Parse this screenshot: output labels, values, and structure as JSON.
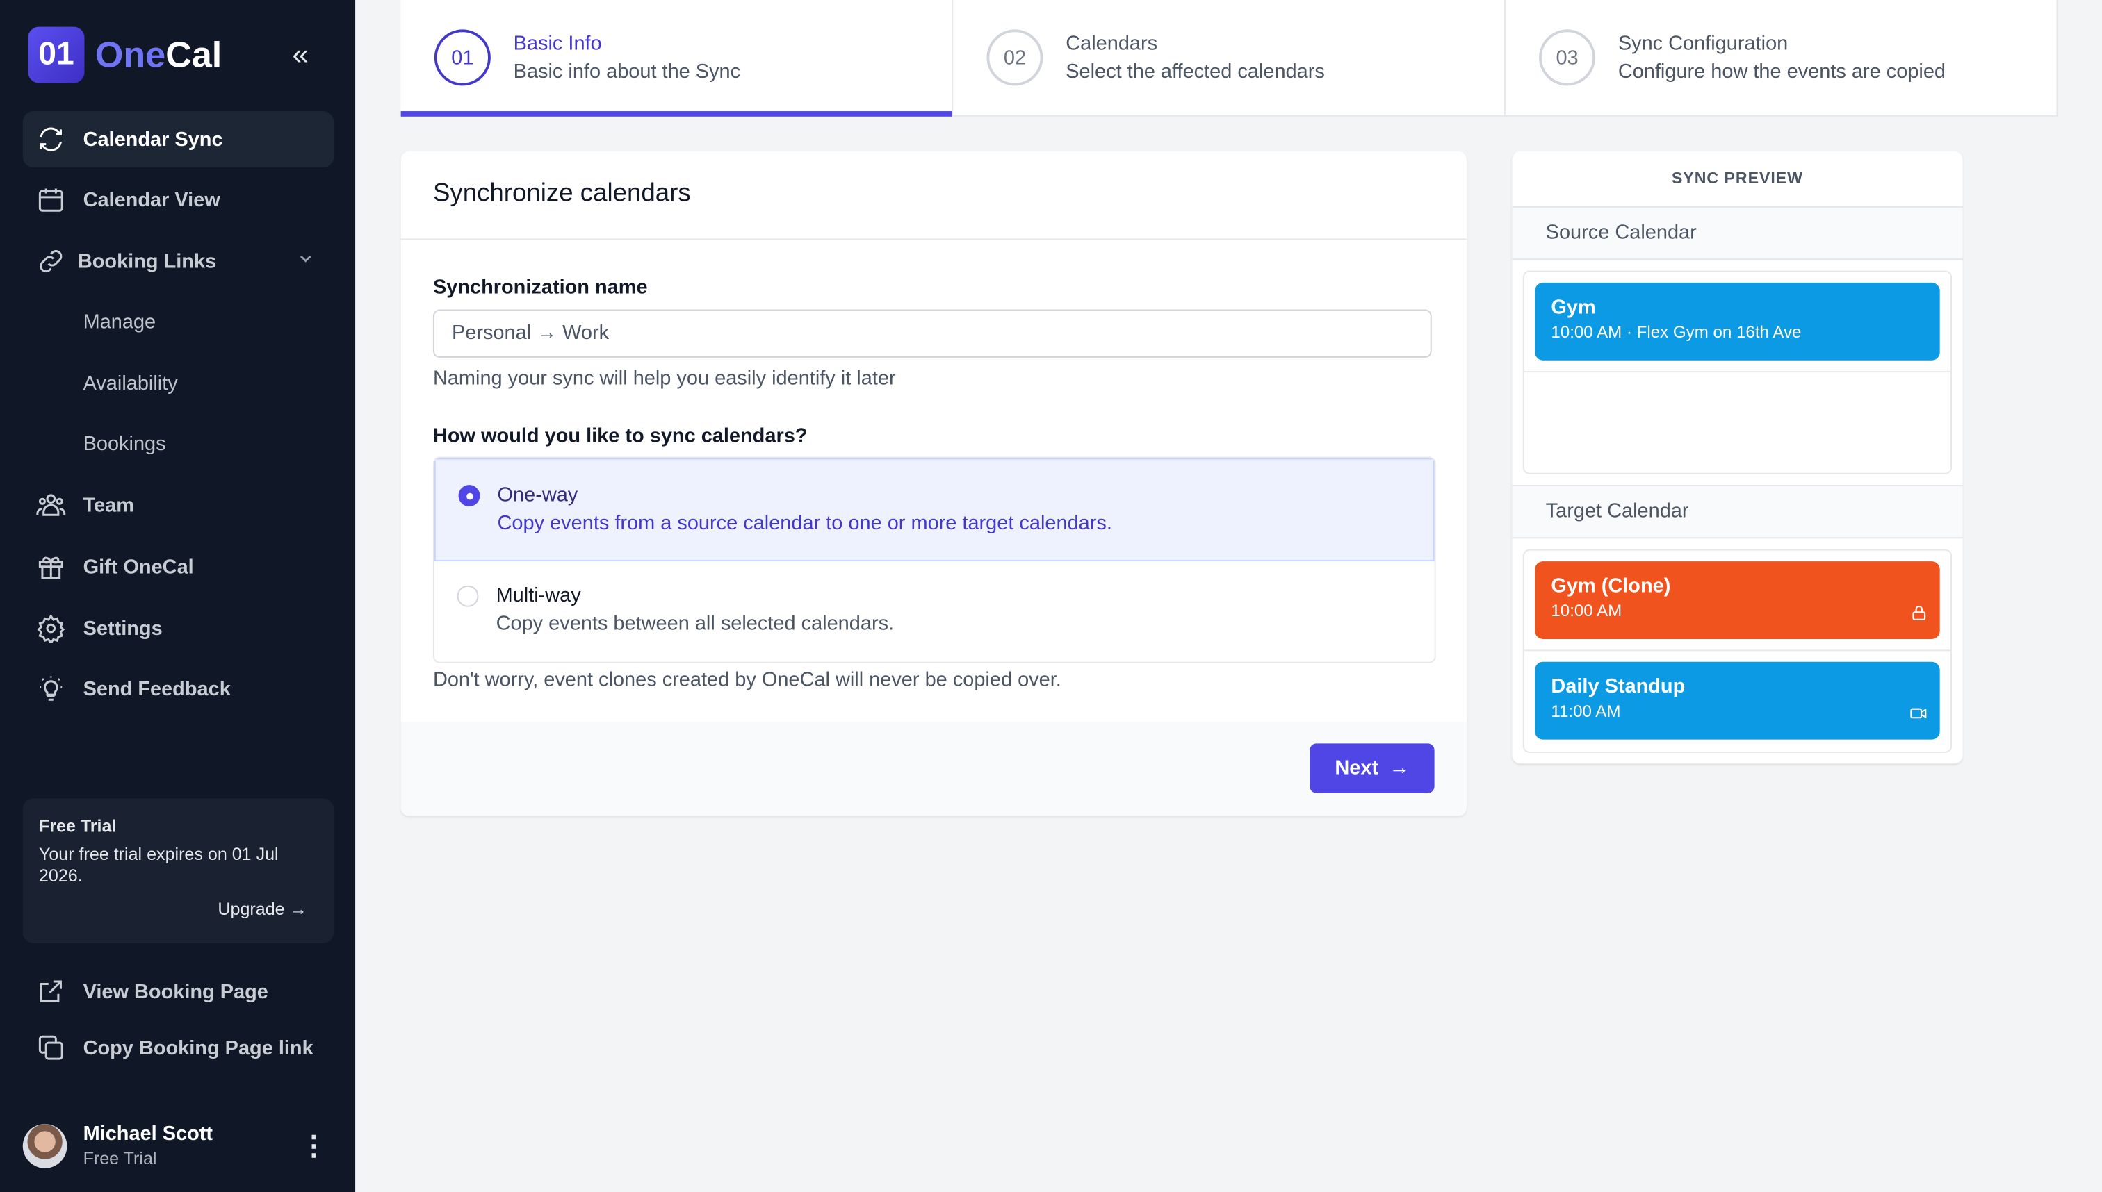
{
  "app": {
    "logo_mark": "01",
    "logo_part1": "One",
    "logo_part2": "Cal",
    "brand_color": "#4f46e5"
  },
  "sidebar": {
    "items": [
      {
        "label": "Calendar Sync",
        "icon": "sync-icon",
        "active": true
      },
      {
        "label": "Calendar View",
        "icon": "calendar-icon"
      },
      {
        "label": "Booking Links",
        "icon": "link-icon",
        "expanded": true
      },
      {
        "label": "Team",
        "icon": "users-icon"
      },
      {
        "label": "Gift OneCal",
        "icon": "gift-icon"
      },
      {
        "label": "Settings",
        "icon": "gear-icon"
      },
      {
        "label": "Send Feedback",
        "icon": "lightbulb-icon"
      }
    ],
    "sub_items": [
      "Manage",
      "Availability",
      "Bookings"
    ],
    "trial": {
      "title": "Free Trial",
      "text": "Your free trial expires on 01 Jul 2026.",
      "upgrade": "Upgrade →"
    },
    "bottom": [
      {
        "label": "View Booking Page",
        "icon": "external-link-icon"
      },
      {
        "label": "Copy Booking Page link",
        "icon": "copy-icon"
      }
    ],
    "user": {
      "name": "Michael Scott",
      "plan": "Free Trial"
    }
  },
  "steps": [
    {
      "num": "01",
      "title": "Basic Info",
      "desc": "Basic info about the Sync",
      "active": true
    },
    {
      "num": "02",
      "title": "Calendars",
      "desc": "Select the affected calendars"
    },
    {
      "num": "03",
      "title": "Sync Configuration",
      "desc": "Configure how the events are copied"
    }
  ],
  "form": {
    "title": "Synchronize calendars",
    "name_label": "Synchronization name",
    "name_value": "Personal → Work",
    "name_help": "Naming your sync will help you easily identify it later",
    "mode_label": "How would you like to sync calendars?",
    "options": [
      {
        "title": "One-way",
        "desc": "Copy events from a source calendar to one or more target calendars.",
        "selected": true
      },
      {
        "title": "Multi-way",
        "desc": "Copy events between all selected calendars.",
        "selected": false
      }
    ],
    "note": "Don't worry, event clones created by OneCal will never be copied over.",
    "next": "Next"
  },
  "preview": {
    "title": "SYNC PREVIEW",
    "source_label": "Source Calendar",
    "target_label": "Target Calendar",
    "source_events": [
      {
        "title": "Gym",
        "sub": "10:00 AM · Flex Gym on 16th Ave",
        "color": "#0b9ae3"
      }
    ],
    "target_events": [
      {
        "title": "Gym (Clone)",
        "sub": "10:00 AM",
        "color": "#f1531f",
        "icon": "lock-icon"
      },
      {
        "title": "Daily Standup",
        "sub": "11:00 AM",
        "color": "#0b9ae3",
        "icon": "video-icon"
      }
    ]
  }
}
